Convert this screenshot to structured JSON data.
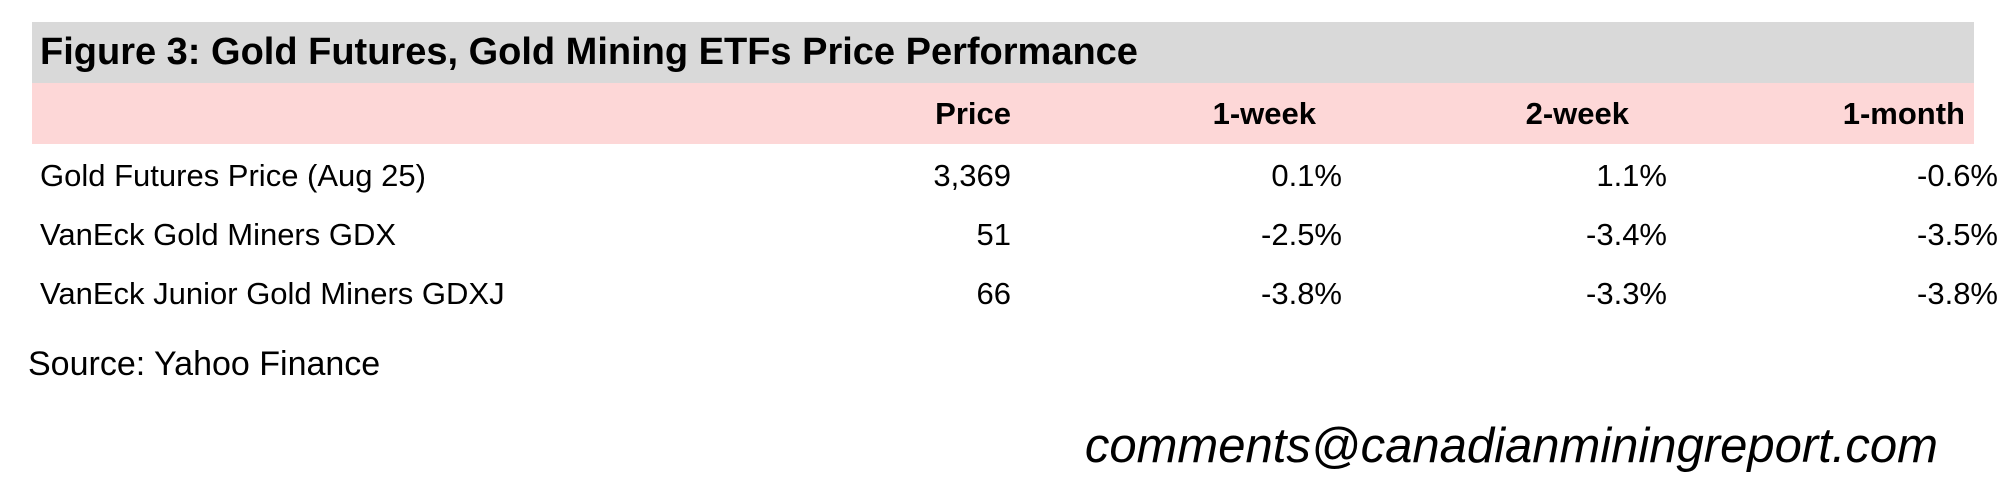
{
  "header": {
    "title": "Figure 3: Gold Futures, Gold Mining ETFs Price Performance"
  },
  "table": {
    "columns": [
      "Price",
      "1-week",
      "2-week",
      "1-month"
    ],
    "rows": [
      [
        "Gold Futures Price (Aug 25)",
        "3,369",
        "0.1%",
        "1.1%",
        "-0.6%"
      ],
      [
        "VanEck Gold Miners GDX",
        "51",
        "-2.5%",
        "-3.4%",
        "-3.5%"
      ],
      [
        "VanEck Junior Gold Miners GDXJ",
        "66",
        "-3.8%",
        "-3.3%",
        "-3.8%"
      ]
    ]
  },
  "source": "Source: Yahoo Finance",
  "contact": "comments@canadianminingreport.com"
}
